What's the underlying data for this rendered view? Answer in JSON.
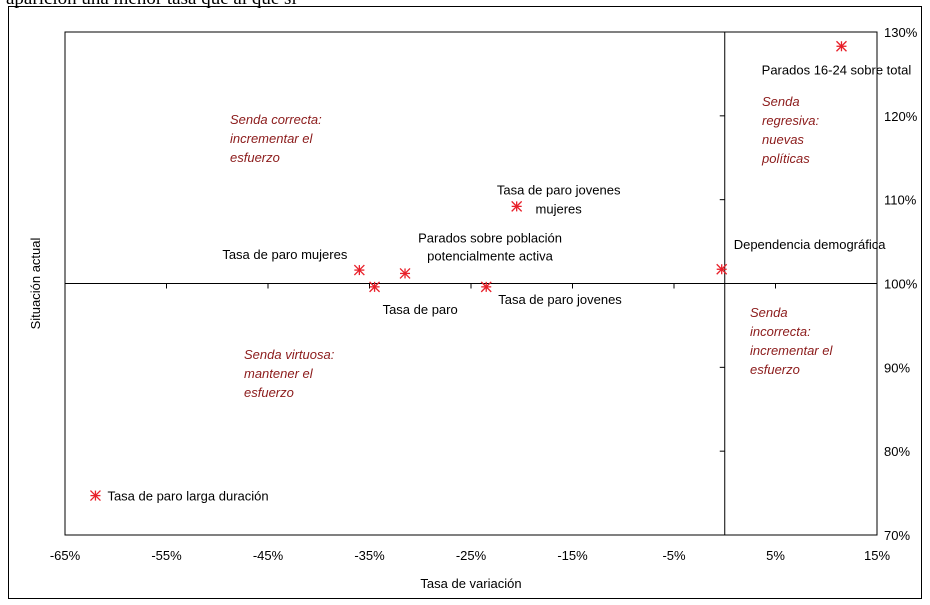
{
  "caption": "aparición una menor tasa que al que si",
  "chart_data": {
    "type": "scatter",
    "xlabel": "Tasa de variación",
    "ylabel": "Situación actual",
    "xlim": [
      -65,
      15
    ],
    "ylim": [
      70,
      130
    ],
    "x_ticks": [
      "-65%",
      "-55%",
      "-45%",
      "-35%",
      "-25%",
      "-15%",
      "-5%",
      "5%",
      "15%"
    ],
    "y_ticks": [
      "70%",
      "80%",
      "90%",
      "100%",
      "110%",
      "120%",
      "130%"
    ],
    "x_ref": 0,
    "y_ref": 100,
    "grid": false,
    "marker_color": "#e8202a",
    "zone_color": "#8b1a1a",
    "points": [
      {
        "name": "Tasa de paro larga duración",
        "x": -62,
        "y": 74.7
      },
      {
        "name": "Tasa de paro mujeres",
        "x": -36,
        "y": 101.6
      },
      {
        "name": "Tasa de paro",
        "x": -34.5,
        "y": 99.6
      },
      {
        "name": "Parados sobre población potencialmente activa",
        "x": -31.5,
        "y": 101.2
      },
      {
        "name": "Tasa de paro jovenes",
        "x": -23.5,
        "y": 99.6
      },
      {
        "name": "Tasa de paro jovenes mujeres",
        "x": -20.5,
        "y": 109.2
      },
      {
        "name": "Dependencia demográfica",
        "x": -0.3,
        "y": 101.7
      },
      {
        "name": "Parados 16-24 sobre total",
        "x": 11.5,
        "y": 128.3
      }
    ],
    "point_labels": [
      [
        "Tasa de paro larga duración"
      ],
      [
        "Tasa de paro mujeres"
      ],
      [
        "Tasa de paro"
      ],
      [
        "Parados sobre población",
        "potencialmente activa"
      ],
      [
        "Tasa de paro jovenes"
      ],
      [
        "Tasa de paro jovenes",
        "mujeres"
      ],
      [
        "Dependencia demográfica"
      ],
      [
        "Parados 16-24 sobre total"
      ]
    ],
    "annotations": [
      {
        "quadrant": "top-left",
        "lines": [
          "Senda correcta:",
          "incrementar el",
          "esfuerzo"
        ]
      },
      {
        "quadrant": "top-right",
        "lines": [
          "Senda",
          "regresiva:",
          "nuevas",
          "políticas"
        ]
      },
      {
        "quadrant": "bottom-left",
        "lines": [
          "Senda virtuosa:",
          "mantener el",
          "esfuerzo"
        ]
      },
      {
        "quadrant": "bottom-right",
        "lines": [
          "Senda",
          "incorrecta:",
          "incrementar el",
          "esfuerzo"
        ]
      }
    ]
  }
}
